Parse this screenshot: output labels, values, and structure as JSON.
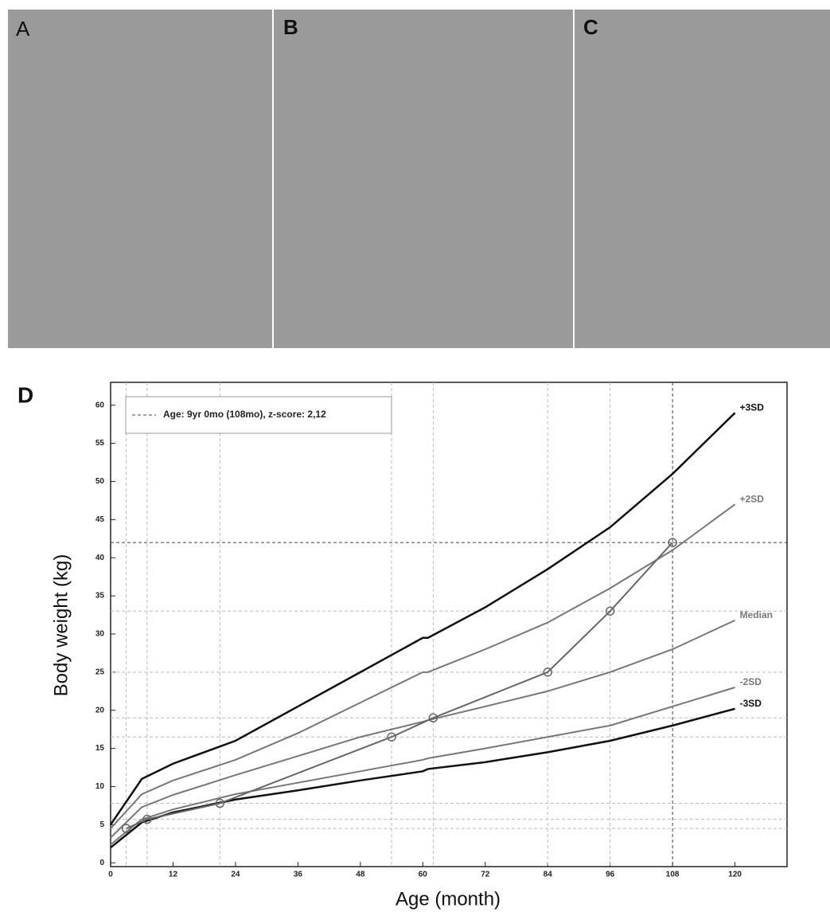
{
  "panels": [
    "A",
    "B",
    "C"
  ],
  "chart_data": {
    "type": "line",
    "panel": "D",
    "xlabel": "Age (month)",
    "ylabel": "Body weight (kg)",
    "legend_text": "Age: 9yr 0mo (108mo), z-score: 2,12",
    "xlim": [
      0,
      130
    ],
    "ylim": [
      -0.5,
      63
    ],
    "xticks": [
      0,
      12,
      24,
      36,
      48,
      60,
      72,
      84,
      96,
      108,
      120
    ],
    "yticks": [
      0,
      5,
      10,
      15,
      20,
      25,
      30,
      35,
      40,
      45,
      50,
      55,
      60
    ],
    "x": [
      0,
      6,
      12,
      24,
      36,
      48,
      60,
      61,
      72,
      84,
      96,
      108,
      120
    ],
    "series": [
      {
        "name": "+3SD",
        "color": "#111111",
        "values": [
          5,
          11,
          13,
          16,
          20.5,
          25,
          29.5,
          29.5,
          33.5,
          38.5,
          44,
          51,
          59
        ]
      },
      {
        "name": "+2SD",
        "color": "#777777",
        "values": [
          4.5,
          9,
          10.8,
          13.5,
          17,
          21,
          25,
          25,
          28,
          31.5,
          36,
          41,
          47
        ]
      },
      {
        "name": "Median",
        "color": "#777777",
        "values": [
          3.3,
          7.3,
          8.9,
          11.5,
          14,
          16.5,
          18.5,
          18.7,
          20.5,
          22.5,
          25,
          28,
          31.8
        ]
      },
      {
        "name": "-2SD",
        "color": "#777777",
        "values": [
          2.4,
          5.7,
          7,
          9,
          10.5,
          12,
          13.5,
          13.7,
          15,
          16.5,
          18,
          20.5,
          23
        ]
      },
      {
        "name": "-3SD",
        "color": "#111111",
        "values": [
          2,
          5.3,
          6.6,
          8.3,
          9.5,
          10.8,
          12,
          12.3,
          13.2,
          14.5,
          16,
          18,
          20.2
        ]
      }
    ],
    "patient": {
      "color": "#666666",
      "x": [
        3,
        7,
        21,
        54,
        62,
        84,
        96,
        108
      ],
      "values": [
        4.5,
        5.7,
        7.8,
        16.5,
        19,
        25,
        33,
        42
      ]
    }
  }
}
